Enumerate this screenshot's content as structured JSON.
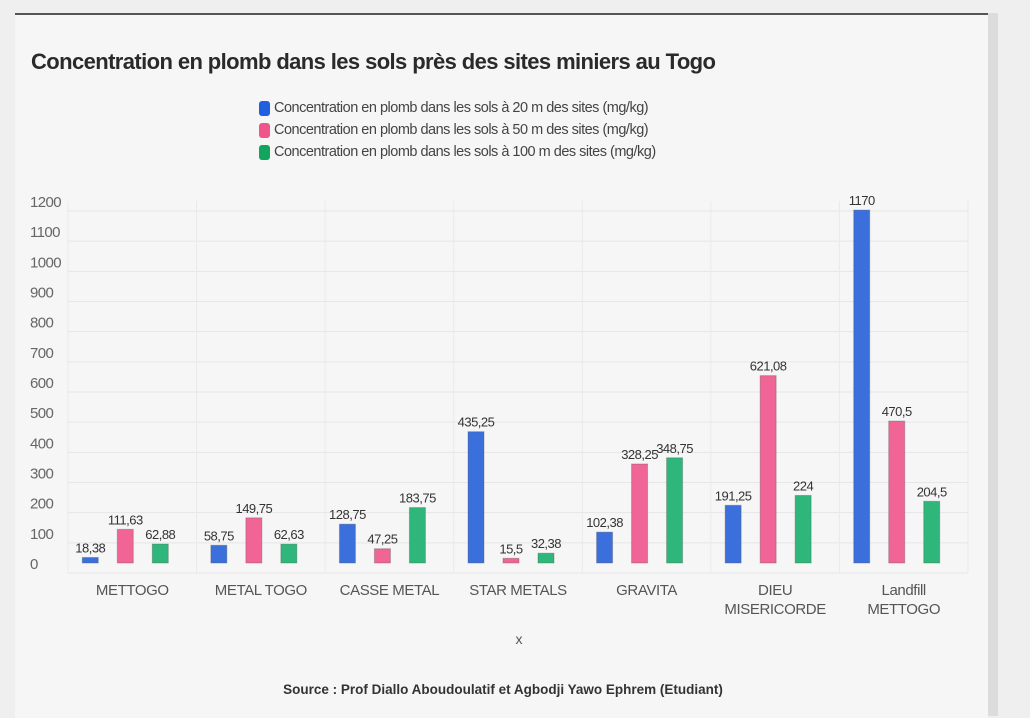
{
  "chart_data": {
    "type": "bar",
    "title": "Concentration en plomb dans les sols près des sites miniers au Togo",
    "xlabel": "x",
    "ylabel": "",
    "ylim": [
      0,
      1200
    ],
    "yticks": [
      0,
      100,
      200,
      300,
      400,
      500,
      600,
      700,
      800,
      900,
      1000,
      1100,
      1200
    ],
    "grid": true,
    "legend_placement": "top-center",
    "categories": [
      [
        "METTOGO"
      ],
      [
        "METAL TOGO"
      ],
      [
        "CASSE METAL"
      ],
      [
        "STAR METALS"
      ],
      [
        "GRAVITA"
      ],
      [
        "DIEU",
        "MISERICORDE"
      ],
      [
        "Landfill",
        "METTOGO"
      ]
    ],
    "series": [
      {
        "name": "Concentration en plomb dans les sols à 20 m des sites (mg/kg)",
        "color": "#3b6fdc",
        "values": [
          18.38,
          58.75,
          128.75,
          435.25,
          102.38,
          191.25,
          1170
        ],
        "labels": [
          "18,38",
          "58,75",
          "128,75",
          "435,25",
          "102,38",
          "191,25",
          "1170"
        ]
      },
      {
        "name": "Concentration en plomb dans les sols à 50 m des sites (mg/kg)",
        "color": "#f06595",
        "values": [
          111.63,
          149.75,
          47.25,
          15.5,
          328.25,
          621.08,
          470.5
        ],
        "labels": [
          "111,63",
          "149,75",
          "47,25",
          "15,5",
          "328,25",
          "621,08",
          "470,5"
        ]
      },
      {
        "name": "Concentration en plomb dans les sols à 100 m des sites (mg/kg)",
        "color": "#2fb67a",
        "values": [
          62.88,
          62.63,
          183.75,
          32.38,
          348.75,
          224,
          204.5
        ],
        "labels": [
          "62,88",
          "62,63",
          "183,75",
          "32,38",
          "348,75",
          "224",
          "204,5"
        ]
      }
    ],
    "source": "Source : Prof Diallo Aboudoulatif et Agbodji Yawo Ephrem (Etudiant)"
  }
}
